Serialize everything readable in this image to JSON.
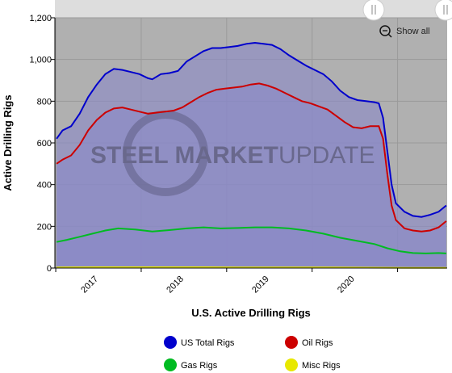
{
  "chart_data": {
    "type": "area",
    "title": "",
    "xlabel": "U.S. Active Drilling Rigs",
    "ylabel": "Active Drilling Rigs",
    "ylim": [
      0,
      1200
    ],
    "yticks": [
      "0",
      "200",
      "400",
      "600",
      "800",
      "1,000",
      "1,200"
    ],
    "xticks": [
      "2017",
      "2018",
      "2019",
      "2020"
    ],
    "grid": true,
    "legend_position": "bottom",
    "watermark": [
      "STEEL MARKET",
      "UPDATE"
    ],
    "show_all_label": "Show all",
    "series": [
      {
        "name": "US Total Rigs",
        "color": "#0000cc",
        "points": [
          [
            2016.38,
            620
          ],
          [
            2016.45,
            660
          ],
          [
            2016.55,
            680
          ],
          [
            2016.65,
            740
          ],
          [
            2016.75,
            820
          ],
          [
            2016.85,
            880
          ],
          [
            2016.95,
            930
          ],
          [
            2017.05,
            955
          ],
          [
            2017.15,
            950
          ],
          [
            2017.25,
            940
          ],
          [
            2017.35,
            930
          ],
          [
            2017.45,
            910
          ],
          [
            2017.5,
            905
          ],
          [
            2017.6,
            930
          ],
          [
            2017.7,
            935
          ],
          [
            2017.8,
            945
          ],
          [
            2017.9,
            990
          ],
          [
            2018.0,
            1015
          ],
          [
            2018.1,
            1040
          ],
          [
            2018.2,
            1055
          ],
          [
            2018.3,
            1055
          ],
          [
            2018.4,
            1060
          ],
          [
            2018.5,
            1065
          ],
          [
            2018.6,
            1075
          ],
          [
            2018.7,
            1080
          ],
          [
            2018.8,
            1075
          ],
          [
            2018.9,
            1070
          ],
          [
            2019.0,
            1050
          ],
          [
            2019.1,
            1020
          ],
          [
            2019.2,
            995
          ],
          [
            2019.3,
            970
          ],
          [
            2019.4,
            950
          ],
          [
            2019.5,
            930
          ],
          [
            2019.6,
            895
          ],
          [
            2019.7,
            850
          ],
          [
            2019.8,
            820
          ],
          [
            2019.9,
            805
          ],
          [
            2020.0,
            800
          ],
          [
            2020.1,
            795
          ],
          [
            2020.15,
            790
          ],
          [
            2020.2,
            720
          ],
          [
            2020.25,
            560
          ],
          [
            2020.3,
            400
          ],
          [
            2020.35,
            310
          ],
          [
            2020.45,
            270
          ],
          [
            2020.55,
            250
          ],
          [
            2020.65,
            245
          ],
          [
            2020.75,
            255
          ],
          [
            2020.85,
            270
          ],
          [
            2020.94,
            300
          ]
        ]
      },
      {
        "name": "Oil Rigs",
        "color": "#cc0000",
        "points": [
          [
            2016.38,
            500
          ],
          [
            2016.45,
            520
          ],
          [
            2016.55,
            540
          ],
          [
            2016.65,
            590
          ],
          [
            2016.75,
            660
          ],
          [
            2016.85,
            710
          ],
          [
            2016.95,
            745
          ],
          [
            2017.05,
            765
          ],
          [
            2017.15,
            770
          ],
          [
            2017.25,
            760
          ],
          [
            2017.35,
            750
          ],
          [
            2017.45,
            740
          ],
          [
            2017.55,
            745
          ],
          [
            2017.65,
            750
          ],
          [
            2017.75,
            755
          ],
          [
            2017.85,
            770
          ],
          [
            2017.95,
            795
          ],
          [
            2018.05,
            820
          ],
          [
            2018.15,
            840
          ],
          [
            2018.25,
            855
          ],
          [
            2018.35,
            860
          ],
          [
            2018.45,
            865
          ],
          [
            2018.55,
            870
          ],
          [
            2018.65,
            880
          ],
          [
            2018.75,
            885
          ],
          [
            2018.85,
            875
          ],
          [
            2018.95,
            860
          ],
          [
            2019.05,
            840
          ],
          [
            2019.15,
            820
          ],
          [
            2019.25,
            800
          ],
          [
            2019.35,
            790
          ],
          [
            2019.45,
            775
          ],
          [
            2019.55,
            760
          ],
          [
            2019.65,
            730
          ],
          [
            2019.75,
            700
          ],
          [
            2019.85,
            675
          ],
          [
            2019.95,
            670
          ],
          [
            2020.05,
            680
          ],
          [
            2020.15,
            680
          ],
          [
            2020.2,
            620
          ],
          [
            2020.25,
            450
          ],
          [
            2020.3,
            300
          ],
          [
            2020.35,
            230
          ],
          [
            2020.45,
            190
          ],
          [
            2020.55,
            180
          ],
          [
            2020.65,
            175
          ],
          [
            2020.75,
            180
          ],
          [
            2020.85,
            195
          ],
          [
            2020.94,
            225
          ]
        ]
      },
      {
        "name": "Gas Rigs",
        "color": "#00bb22",
        "points": [
          [
            2016.38,
            125
          ],
          [
            2016.5,
            135
          ],
          [
            2016.65,
            150
          ],
          [
            2016.8,
            165
          ],
          [
            2016.95,
            180
          ],
          [
            2017.1,
            190
          ],
          [
            2017.3,
            185
          ],
          [
            2017.5,
            175
          ],
          [
            2017.7,
            182
          ],
          [
            2017.9,
            190
          ],
          [
            2018.1,
            195
          ],
          [
            2018.3,
            190
          ],
          [
            2018.5,
            192
          ],
          [
            2018.7,
            195
          ],
          [
            2018.9,
            195
          ],
          [
            2019.1,
            190
          ],
          [
            2019.3,
            180
          ],
          [
            2019.5,
            165
          ],
          [
            2019.7,
            145
          ],
          [
            2019.9,
            130
          ],
          [
            2020.1,
            115
          ],
          [
            2020.25,
            95
          ],
          [
            2020.4,
            80
          ],
          [
            2020.55,
            72
          ],
          [
            2020.7,
            70
          ],
          [
            2020.85,
            72
          ],
          [
            2020.94,
            70
          ]
        ]
      },
      {
        "name": "Misc Rigs",
        "color": "#e8e800",
        "points": [
          [
            2016.38,
            3
          ],
          [
            2016.9,
            4
          ],
          [
            2017.5,
            4
          ],
          [
            2018.0,
            4
          ],
          [
            2018.5,
            3
          ],
          [
            2019.0,
            3
          ],
          [
            2019.5,
            3
          ],
          [
            2020.0,
            2
          ],
          [
            2020.5,
            1
          ],
          [
            2020.94,
            1
          ]
        ]
      }
    ]
  }
}
